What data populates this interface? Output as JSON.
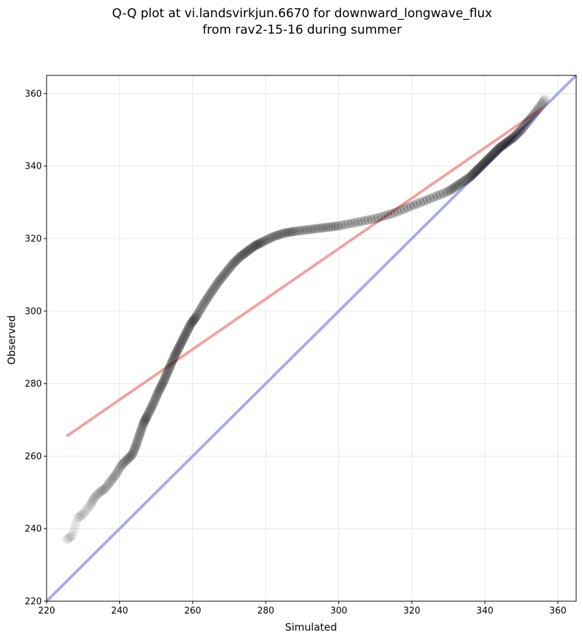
{
  "chart_data": {
    "type": "scatter",
    "title_line1": "Q-Q plot at vi.landsvirkjun.6670 for downward_longwave_flux",
    "title_line2": "from rav2-15-16 during summer",
    "xlabel": "Simulated",
    "ylabel": "Observed",
    "xlim": [
      220,
      365
    ],
    "ylim": [
      220,
      365
    ],
    "xticks": [
      220,
      240,
      260,
      280,
      300,
      320,
      340,
      360
    ],
    "yticks": [
      220,
      240,
      260,
      280,
      300,
      320,
      340,
      360
    ],
    "grid": true,
    "colors": {
      "points": "#000000",
      "fit_line": "#f4a0a0",
      "identity_line": "#a8a8f4"
    },
    "fit_line": {
      "x": [
        225.5,
        356.5
      ],
      "y": [
        265.5,
        356.5
      ]
    },
    "identity_line": {
      "x": [
        220,
        365
      ],
      "y": [
        220,
        365
      ]
    },
    "curve": {
      "x": [
        225.5,
        227,
        228.5,
        230,
        232,
        233,
        234.5,
        236,
        237.5,
        239,
        240.5,
        242,
        243.5,
        244.5,
        245.5,
        246.5,
        247.5,
        249,
        250.5,
        252,
        253.5,
        255,
        256.5,
        258,
        259.5,
        261,
        263,
        265,
        267,
        269,
        271,
        273,
        275,
        277,
        279,
        282,
        285,
        288,
        292,
        296,
        300,
        305,
        310,
        315,
        320,
        325,
        330,
        333,
        336,
        338,
        340,
        342,
        344,
        346,
        348,
        350,
        352,
        354,
        355.5,
        356.5
      ],
      "y": [
        237,
        238,
        243,
        244,
        246.5,
        248.5,
        250,
        251,
        253,
        255,
        257.5,
        259,
        260.5,
        263,
        266,
        269,
        271,
        274,
        277.5,
        280.5,
        284,
        287.5,
        290.5,
        293.5,
        296.5,
        298.5,
        302,
        305,
        308,
        310.5,
        313,
        315,
        316.5,
        318,
        319,
        320.5,
        321.5,
        322,
        322.5,
        323,
        323.5,
        324.5,
        325.5,
        327,
        329,
        331,
        333,
        335,
        337,
        339,
        341,
        343,
        345,
        346.5,
        348,
        350,
        352.5,
        355,
        357,
        358.5
      ],
      "alpha": [
        0.12,
        0.12,
        0.13,
        0.14,
        0.16,
        0.17,
        0.19,
        0.21,
        0.24,
        0.27,
        0.3,
        0.33,
        0.36,
        0.39,
        0.42,
        0.45,
        0.48,
        0.52,
        0.55,
        0.58,
        0.6,
        0.6,
        0.6,
        0.58,
        0.56,
        0.54,
        0.52,
        0.5,
        0.5,
        0.48,
        0.48,
        0.48,
        0.48,
        0.5,
        0.5,
        0.5,
        0.5,
        0.52,
        0.52,
        0.52,
        0.52,
        0.5,
        0.5,
        0.5,
        0.52,
        0.54,
        0.56,
        0.58,
        0.6,
        0.62,
        0.64,
        0.64,
        0.62,
        0.6,
        0.55,
        0.5,
        0.42,
        0.32,
        0.22,
        0.16
      ],
      "point_count": 330
    }
  }
}
